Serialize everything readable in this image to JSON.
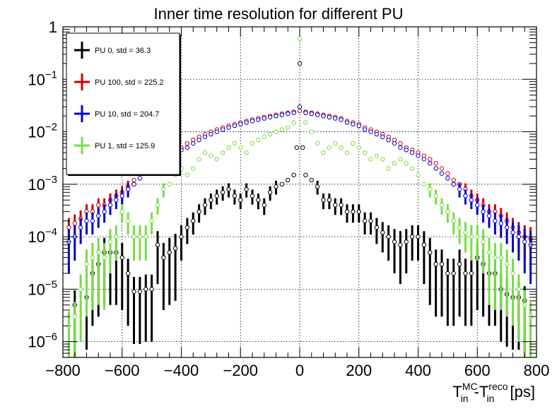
{
  "chart_data": {
    "type": "scatter",
    "title": "Inner time resolution for different PU",
    "xlabel": {
      "main": "T",
      "sup1": "MC",
      "sub1": "in",
      "mid": "-T",
      "sup2": "reco",
      "sub2": "in",
      "unit": " [ps]"
    },
    "ylabel": "",
    "yscale": "log",
    "xlim": [
      -800,
      800
    ],
    "ylim": [
      5e-07,
      1
    ],
    "grid": true,
    "legend_position": "top-left",
    "x_ticks": [
      {
        "v": -800,
        "label": "−800"
      },
      {
        "v": -600,
        "label": "−600"
      },
      {
        "v": -400,
        "label": "−400"
      },
      {
        "v": -200,
        "label": "−200"
      },
      {
        "v": 0,
        "label": "0"
      },
      {
        "v": 200,
        "label": "200"
      },
      {
        "v": 400,
        "label": "400"
      },
      {
        "v": 600,
        "label": "600"
      },
      {
        "v": 800,
        "label": "800"
      }
    ],
    "y_ticks": [
      {
        "v": 1,
        "base": "1",
        "exp": ""
      },
      {
        "v": 0.1,
        "base": "10",
        "exp": "−1"
      },
      {
        "v": 0.01,
        "base": "10",
        "exp": "−2"
      },
      {
        "v": 0.001,
        "base": "10",
        "exp": "−3"
      },
      {
        "v": 0.0001,
        "base": "10",
        "exp": "−4"
      },
      {
        "v": 1e-05,
        "base": "10",
        "exp": "−5"
      },
      {
        "v": 1e-06,
        "base": "10",
        "exp": "−6"
      }
    ],
    "series": [
      {
        "name": "PU 0, std = 36.3",
        "color": "#000000",
        "x": [
          -760,
          -720,
          -700,
          -680,
          -660,
          -640,
          -620,
          -600,
          -580,
          -560,
          -540,
          -520,
          -500,
          -480,
          -460,
          -440,
          -420,
          -400,
          -380,
          -360,
          -340,
          -320,
          -300,
          -280,
          -260,
          -240,
          -220,
          -200,
          -180,
          -160,
          -140,
          -120,
          -100,
          -80,
          -60,
          -40,
          -20,
          -10,
          0,
          10,
          20,
          40,
          60,
          80,
          100,
          120,
          140,
          160,
          180,
          200,
          220,
          240,
          260,
          280,
          300,
          320,
          340,
          360,
          380,
          400,
          420,
          440,
          460,
          480,
          500,
          520,
          540,
          560,
          580,
          600,
          620,
          640,
          660,
          680,
          700,
          720,
          740,
          760
        ],
        "y": [
          5e-06,
          7e-06,
          2e-05,
          3e-05,
          5e-05,
          5e-05,
          5e-05,
          4e-05,
          2e-05,
          9e-06,
          9e-06,
          1e-05,
          1e-05,
          7e-05,
          4e-05,
          5e-05,
          6e-05,
          0.0001,
          0.00015,
          0.0002,
          0.0003,
          0.0004,
          0.0005,
          0.0006,
          0.0007,
          0.0008,
          0.0006,
          0.0005,
          0.0008,
          0.0006,
          0.0005,
          0.0004,
          0.0007,
          0.0009,
          0.001,
          0.0012,
          0.0015,
          0.005,
          0.2,
          0.005,
          0.0015,
          0.0012,
          0.0009,
          0.0005,
          0.0005,
          0.0004,
          0.0004,
          0.0003,
          0.0003,
          0.0003,
          0.0002,
          0.0002,
          0.00015,
          0.00012,
          0.0001,
          8e-05,
          7e-05,
          8e-05,
          0.0001,
          0.0001,
          7e-05,
          5e-05,
          3e-05,
          3e-05,
          2e-05,
          2e-05,
          3e-05,
          2e-05,
          2e-05,
          4e-05,
          3e-05,
          2e-05,
          2e-05,
          1e-05,
          8e-06,
          7e-06,
          7e-06,
          6e-06
        ]
      },
      {
        "name": "PU 100, std = 225.2",
        "color": "#cc0000",
        "x": [
          -780,
          -760,
          -740,
          -720,
          -700,
          -680,
          -660,
          -640,
          -620,
          -600,
          -580,
          -560,
          -540,
          -520,
          -500,
          -480,
          -460,
          -440,
          -420,
          -400,
          -380,
          -360,
          -340,
          -320,
          -300,
          -280,
          -260,
          -240,
          -220,
          -200,
          -180,
          -160,
          -140,
          -120,
          -100,
          -80,
          -60,
          -40,
          -20,
          0,
          20,
          40,
          60,
          80,
          100,
          120,
          140,
          160,
          180,
          200,
          220,
          240,
          260,
          280,
          300,
          320,
          340,
          360,
          380,
          400,
          420,
          440,
          460,
          480,
          500,
          520,
          540,
          560,
          580,
          600,
          620,
          640,
          660,
          680,
          700,
          720,
          740,
          760,
          780
        ],
        "y": [
          0.00015,
          0.00018,
          0.00022,
          0.0003,
          0.0003,
          0.0004,
          0.0004,
          0.0005,
          0.0006,
          0.0007,
          0.0009,
          0.0012,
          0.0016,
          0.002,
          0.0025,
          0.003,
          0.0035,
          0.004,
          0.0045,
          0.005,
          0.006,
          0.007,
          0.008,
          0.009,
          0.01,
          0.011,
          0.012,
          0.013,
          0.014,
          0.015,
          0.016,
          0.017,
          0.018,
          0.019,
          0.02,
          0.021,
          0.022,
          0.023,
          0.024,
          0.025,
          0.024,
          0.023,
          0.022,
          0.021,
          0.02,
          0.019,
          0.018,
          0.016,
          0.015,
          0.014,
          0.012,
          0.011,
          0.01,
          0.009,
          0.008,
          0.007,
          0.006,
          0.005,
          0.0045,
          0.004,
          0.0035,
          0.003,
          0.0025,
          0.002,
          0.0016,
          0.0012,
          0.001,
          0.0008,
          0.0006,
          0.0005,
          0.0004,
          0.0003,
          0.0003,
          0.00025,
          0.0002,
          0.00015,
          0.00012,
          0.0001,
          9e-05
        ]
      },
      {
        "name": "PU 10, std = 204.7",
        "color": "#0000cc",
        "x": [
          -780,
          -760,
          -740,
          -720,
          -700,
          -680,
          -660,
          -640,
          -620,
          -600,
          -580,
          -560,
          -540,
          -520,
          -500,
          -480,
          -460,
          -440,
          -420,
          -400,
          -380,
          -360,
          -340,
          -320,
          -300,
          -280,
          -260,
          -240,
          -220,
          -200,
          -180,
          -160,
          -140,
          -120,
          -100,
          -80,
          -60,
          -40,
          -20,
          0,
          20,
          40,
          60,
          80,
          100,
          120,
          140,
          160,
          180,
          200,
          220,
          240,
          260,
          280,
          300,
          320,
          340,
          360,
          380,
          400,
          420,
          440,
          460,
          480,
          500,
          520,
          540,
          560,
          580,
          600,
          620,
          640,
          660,
          680,
          700,
          720,
          740,
          760,
          780
        ],
        "y": [
          8e-05,
          0.0001,
          0.00015,
          0.0002,
          0.0002,
          0.00025,
          0.0003,
          0.0004,
          0.0005,
          0.0006,
          0.0008,
          0.001,
          0.0013,
          0.0016,
          0.002,
          0.0025,
          0.003,
          0.0035,
          0.004,
          0.0045,
          0.005,
          0.006,
          0.007,
          0.008,
          0.009,
          0.01,
          0.011,
          0.012,
          0.013,
          0.014,
          0.015,
          0.016,
          0.017,
          0.018,
          0.019,
          0.02,
          0.021,
          0.022,
          0.023,
          0.03,
          0.023,
          0.022,
          0.021,
          0.02,
          0.019,
          0.018,
          0.017,
          0.015,
          0.014,
          0.013,
          0.011,
          0.01,
          0.009,
          0.008,
          0.007,
          0.006,
          0.005,
          0.0045,
          0.004,
          0.0035,
          0.003,
          0.0025,
          0.002,
          0.0016,
          0.0013,
          0.001,
          0.0008,
          0.0006,
          0.0005,
          0.0004,
          0.0003,
          0.00025,
          0.0002,
          0.00018,
          0.00015,
          0.00012,
          0.0001,
          8e-05,
          7e-05
        ]
      },
      {
        "name": "PU 1, std = 125.9",
        "color": "#77dd44",
        "x": [
          -780,
          -760,
          -740,
          -720,
          -700,
          -680,
          -660,
          -640,
          -620,
          -600,
          -580,
          -560,
          -540,
          -520,
          -500,
          -480,
          -460,
          -440,
          -420,
          -400,
          -380,
          -360,
          -340,
          -320,
          -300,
          -280,
          -260,
          -240,
          -220,
          -200,
          -180,
          -160,
          -140,
          -120,
          -100,
          -80,
          -60,
          -40,
          -20,
          0,
          20,
          40,
          60,
          80,
          100,
          120,
          140,
          160,
          180,
          200,
          220,
          240,
          260,
          280,
          300,
          320,
          340,
          360,
          380,
          400,
          420,
          440,
          460,
          480,
          500,
          520,
          540,
          560,
          580,
          600,
          620,
          640,
          660,
          680,
          700,
          720,
          740,
          760,
          780
        ],
        "y": [
          2e-06,
          3e-06,
          1e-05,
          3e-05,
          4e-05,
          5e-05,
          4e-05,
          8e-05,
          0.0001,
          0.0003,
          0.0002,
          0.0001,
          0.0001,
          0.0001,
          0.0002,
          0.0004,
          0.0008,
          0.001,
          0.0015,
          0.002,
          0.0015,
          0.002,
          0.003,
          0.004,
          0.0035,
          0.003,
          0.004,
          0.005,
          0.006,
          0.005,
          0.004,
          0.006,
          0.007,
          0.008,
          0.009,
          0.01,
          0.011,
          0.012,
          0.015,
          0.6,
          0.015,
          0.01,
          0.006,
          0.004,
          0.005,
          0.006,
          0.005,
          0.004,
          0.006,
          0.005,
          0.004,
          0.003,
          0.0035,
          0.003,
          0.002,
          0.0025,
          0.003,
          0.0025,
          0.002,
          0.0015,
          0.001,
          0.0008,
          0.0006,
          0.0004,
          0.0003,
          0.0002,
          0.00015,
          0.00012,
          0.0001,
          0.0001,
          8e-05,
          5e-05,
          4e-05,
          4e-05,
          3e-05,
          2e-05,
          1e-05,
          5e-06,
          3e-06
        ]
      }
    ]
  }
}
